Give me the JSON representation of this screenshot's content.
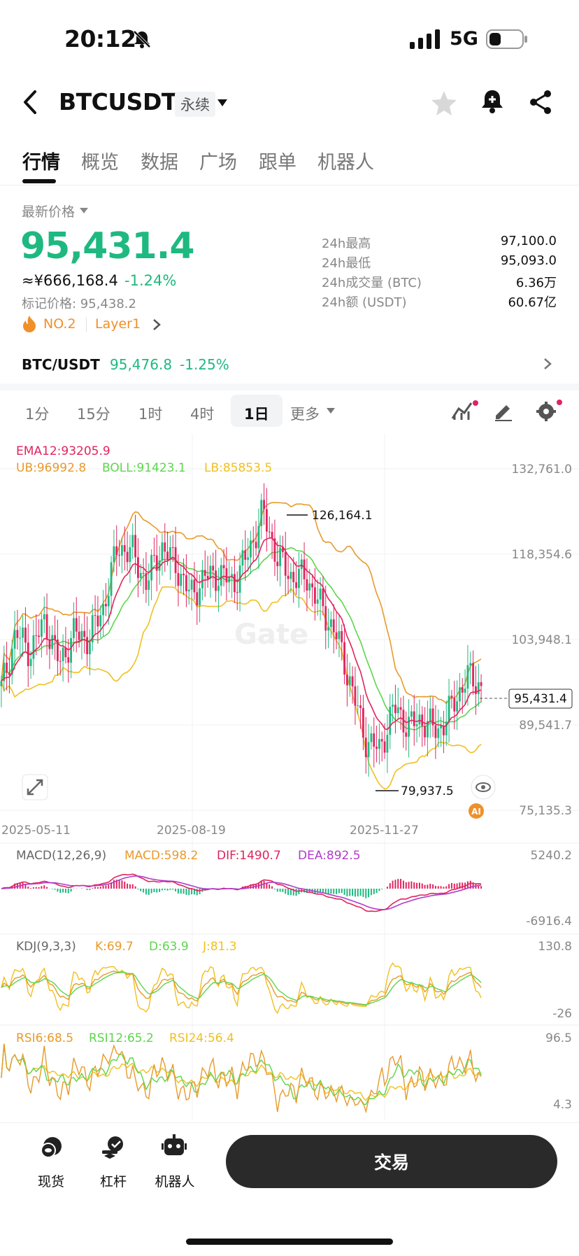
{
  "status_bar": {
    "time": "20:12",
    "network": "5G"
  },
  "header": {
    "title": "BTCUSDT",
    "contract_type": "永续"
  },
  "tabs": [
    {
      "label": "行情",
      "active": true
    },
    {
      "label": "概览",
      "active": false
    },
    {
      "label": "数据",
      "active": false
    },
    {
      "label": "广场",
      "active": false
    },
    {
      "label": "跟单",
      "active": false
    },
    {
      "label": "机器人",
      "active": false
    }
  ],
  "price": {
    "latest_label": "最新价格",
    "last": "95,431.4",
    "cny": "≈¥666,168.4",
    "change": "-1.24%",
    "mark_price": "标记价格: 95,438.2",
    "rank": "NO.2",
    "tag": "Layer1"
  },
  "stats": [
    {
      "label": "24h最高",
      "value": "97,100.0"
    },
    {
      "label": "24h最低",
      "value": "95,093.0"
    },
    {
      "label": "24h成交量 (BTC)",
      "value": "6.36万"
    },
    {
      "label": "24h额 (USDT)",
      "value": "60.67亿"
    }
  ],
  "spot": {
    "pair": "BTC/USDT",
    "price": "95,476.8",
    "change": "-1.25%"
  },
  "intervals": [
    {
      "label": "1分",
      "active": false
    },
    {
      "label": "15分",
      "active": false
    },
    {
      "label": "1时",
      "active": false
    },
    {
      "label": "4时",
      "active": false
    },
    {
      "label": "1日",
      "active": true
    }
  ],
  "more_label": "更多",
  "indicators": {
    "ema": "EMA12:93205.9",
    "ub": "UB:96992.8",
    "boll": "BOLL:91423.1",
    "lb": "LB:85853.5",
    "macd_title": "MACD(12,26,9)",
    "macd": "MACD:598.2",
    "dif": "DIF:1490.7",
    "dea": "DEA:892.5",
    "kdj_title": "KDJ(9,3,3)",
    "k": "K:69.7",
    "d": "D:63.9",
    "j": "J:81.3",
    "rsi6": "RSI6:68.5",
    "rsi12": "RSI12:65.2",
    "rsi24": "RSI24:56.4"
  },
  "chart_data": {
    "type": "candlestick",
    "y_ticks": [
      "132,761.0",
      "118,354.6",
      "103,948.1",
      "89,541.7",
      "75,135.3"
    ],
    "ylim": [
      75135.3,
      132761.0
    ],
    "x_ticks": [
      "2025-05-11",
      "2025-08-19",
      "2025-11-27"
    ],
    "current_price_label": "95,431.4",
    "high_annotation": "126,164.1",
    "low_annotation": "79,937.5",
    "close_path": [
      95000,
      104000,
      101000,
      106000,
      99000,
      104000,
      103000,
      108000,
      118000,
      117000,
      112000,
      118000,
      115000,
      110000,
      113000,
      113500,
      112000,
      117000,
      123500,
      116000,
      113000,
      113000,
      108000,
      104000,
      96000,
      87000,
      85000,
      92000,
      89000,
      90000,
      88000,
      92000,
      97000,
      95431.4
    ],
    "macd_labels": [
      "5240.2",
      "-6916.4"
    ],
    "kdj_labels": [
      "130.8",
      "-26"
    ],
    "rsi_labels": [
      "96.5",
      "4.3"
    ],
    "colors": {
      "up": "#1eb980",
      "down": "#e0245e",
      "ema": "#e0245e",
      "ub": "#e89a2c",
      "boll": "#5cd64c",
      "lb": "#f0c020"
    }
  },
  "bottom_nav": [
    {
      "label": "现货",
      "icon": "spot-icon"
    },
    {
      "label": "杠杆",
      "icon": "margin-icon"
    },
    {
      "label": "机器人",
      "icon": "robot-icon"
    }
  ],
  "trade_button": "交易"
}
